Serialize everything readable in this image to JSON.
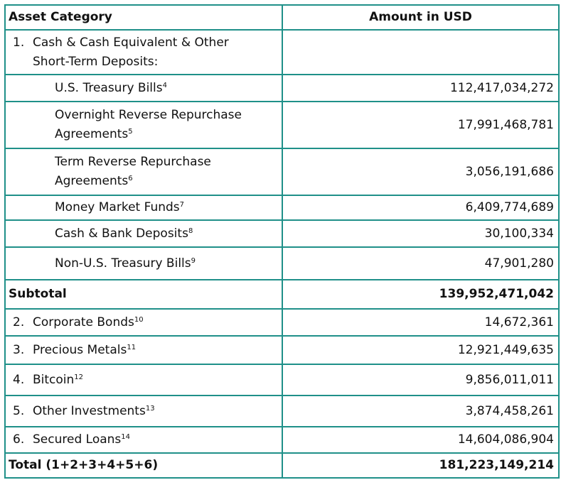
{
  "table": {
    "headers": [
      "Asset Category",
      "Amount in USD"
    ],
    "rows": [
      {
        "num": "1.",
        "label": "Cash & Cash Equivalent & Other Short-Term Deposits:",
        "sup": "",
        "amount": "",
        "level": 1
      },
      {
        "num": "",
        "label": "U.S. Treasury Bills",
        "sup": "4",
        "amount": "112,417,034,272",
        "level": 2
      },
      {
        "num": "",
        "label": "Overnight Reverse Repurchase Agreements",
        "sup": "5",
        "amount": "17,991,468,781",
        "level": 2
      },
      {
        "num": "",
        "label": "Term Reverse Repurchase Agreements",
        "sup": "6",
        "amount": "3,056,191,686",
        "level": 2
      },
      {
        "num": "",
        "label": "Money Market Funds",
        "sup": "7",
        "amount": "6,409,774,689",
        "level": 2
      },
      {
        "num": "",
        "label": "Cash & Bank Deposits",
        "sup": "8",
        "amount": "30,100,334",
        "level": 2
      },
      {
        "num": "",
        "label": "Non-U.S. Treasury Bills",
        "sup": "9",
        "amount": "47,901,280",
        "level": 2
      },
      {
        "num": "",
        "label": "Subtotal",
        "sup": "",
        "amount": "139,952,471,042",
        "level": 0
      },
      {
        "num": "2.",
        "label": "Corporate Bonds",
        "sup": "10",
        "amount": "14,672,361",
        "level": 1
      },
      {
        "num": "3.",
        "label": "Precious Metals",
        "sup": "11",
        "amount": "12,921,449,635",
        "level": 1
      },
      {
        "num": "4.",
        "label": "Bitcoin",
        "sup": "12",
        "amount": "9,856,011,011",
        "level": 1
      },
      {
        "num": "5.",
        "label": "Other Investments",
        "sup": "13",
        "amount": "3,874,458,261",
        "level": 1
      },
      {
        "num": "6.",
        "label": "Secured Loans",
        "sup": "14",
        "amount": "14,604,086,904",
        "level": 1
      },
      {
        "num": "",
        "label": "Total (1+2+3+4+5+6)",
        "sup": "",
        "amount": "181,223,149,214",
        "level": 0
      }
    ]
  },
  "colors": {
    "border": "#1f9089"
  }
}
